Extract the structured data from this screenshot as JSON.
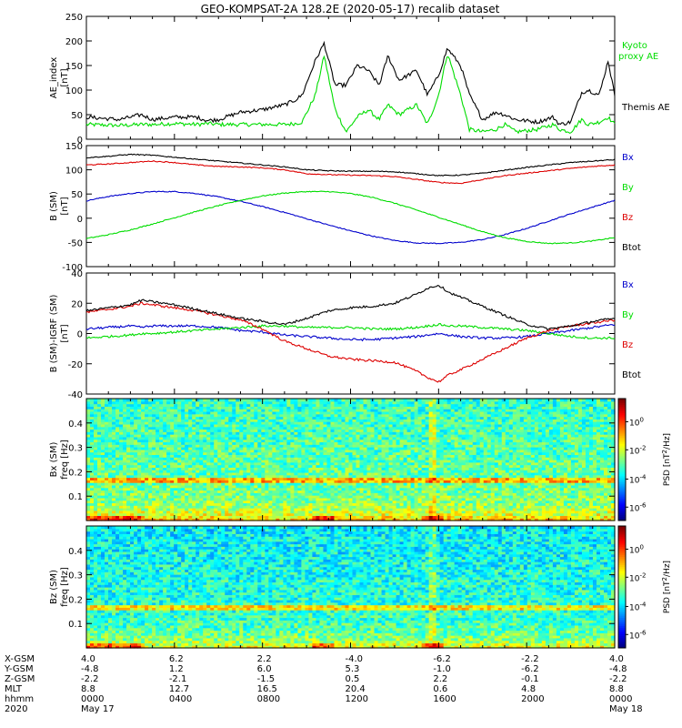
{
  "title": "GEO-KOMPSAT-2A 128.2E (2020-05-17) recalib dataset",
  "colors": {
    "black": "#000000",
    "green": "#00dd00",
    "blue": "#0000cc",
    "red": "#dd0000"
  },
  "chart_data": [
    {
      "type": "line",
      "ylabel": "AE_index [nT]",
      "ylim": [
        0,
        250
      ],
      "yticks": [
        "0",
        "50",
        "100",
        "150",
        "200",
        "250"
      ],
      "x": [
        0,
        1.5,
        2.5,
        3,
        4,
        5,
        5.5,
        6,
        7,
        8,
        9,
        9.5,
        9.8,
        10.4,
        10.8,
        11.3,
        11.8,
        12.3,
        12.8,
        13.3,
        13.7,
        14.2,
        15,
        15.5,
        16,
        16.4,
        17,
        17.4,
        18,
        18.6,
        19,
        19.5,
        20.5,
        21.2,
        21.5,
        22,
        22.5,
        22.8,
        23.3,
        23.7,
        24
      ],
      "series": [
        {
          "name": "Kyoto proxy AE",
          "color": "#00dd00",
          "values": [
            30,
            28,
            30,
            30,
            32,
            30,
            32,
            30,
            30,
            30,
            30,
            32,
            35,
            90,
            170,
            60,
            15,
            45,
            60,
            40,
            70,
            50,
            70,
            30,
            90,
            175,
            90,
            20,
            15,
            20,
            30,
            15,
            20,
            30,
            20,
            15,
            40,
            30,
            35,
            45,
            30
          ]
        },
        {
          "name": "Themis AE",
          "color": "#000000",
          "values": [
            45,
            40,
            50,
            40,
            45,
            45,
            38,
            40,
            55,
            60,
            70,
            80,
            90,
            160,
            195,
            110,
            110,
            150,
            140,
            110,
            170,
            120,
            140,
            90,
            130,
            185,
            150,
            90,
            40,
            55,
            50,
            40,
            35,
            45,
            30,
            35,
            95,
            100,
            90,
            160,
            90
          ]
        }
      ]
    },
    {
      "type": "line",
      "ylabel": "B (SM) [nT]",
      "ylim": [
        -100,
        150
      ],
      "yticks": [
        "-100",
        "-50",
        "0",
        "50",
        "100",
        "150"
      ],
      "x": [
        0,
        1,
        2,
        3,
        4,
        5,
        6,
        7,
        8,
        9,
        10,
        11,
        12,
        13,
        14,
        15,
        16,
        17,
        18,
        19,
        20,
        21,
        22,
        23,
        24
      ],
      "series": [
        {
          "name": "Bx",
          "color": "#0000cc",
          "values": [
            36,
            45,
            51,
            55,
            55,
            51,
            44,
            35,
            24,
            12,
            -1,
            -14,
            -26,
            -37,
            -46,
            -51,
            -52,
            -50,
            -44,
            -34,
            -21,
            -6,
            9,
            23,
            37
          ]
        },
        {
          "name": "By",
          "color": "#00dd00",
          "values": [
            -42,
            -34,
            -24,
            -12,
            1,
            14,
            26,
            37,
            46,
            52,
            55,
            55,
            51,
            43,
            31,
            17,
            2,
            -13,
            -28,
            -40,
            -48,
            -52,
            -51,
            -47,
            -40
          ]
        },
        {
          "name": "Bz",
          "color": "#dd0000",
          "values": [
            110,
            112,
            115,
            118,
            115,
            110,
            107,
            106,
            104,
            100,
            92,
            90,
            89,
            88,
            86,
            80,
            74,
            72,
            80,
            88,
            93,
            98,
            103,
            107,
            110
          ]
        },
        {
          "name": "Btot",
          "color": "#000000",
          "values": [
            125,
            128,
            132,
            130,
            126,
            122,
            118,
            114,
            110,
            106,
            100,
            98,
            97,
            97,
            96,
            92,
            88,
            89,
            93,
            99,
            105,
            110,
            115,
            118,
            121
          ]
        }
      ]
    },
    {
      "type": "line",
      "ylabel": "B (SM)-IGRF (SM) [nT]",
      "ylim": [
        -40,
        40
      ],
      "yticks": [
        "-40",
        "-20",
        "0",
        "20",
        "40"
      ],
      "x": [
        0,
        1,
        2,
        2.5,
        3,
        4,
        5,
        6,
        7,
        8,
        9,
        10,
        11,
        12,
        13,
        14,
        15,
        15.5,
        16,
        16.5,
        17,
        18,
        19,
        20,
        21,
        22,
        23,
        24
      ],
      "series": [
        {
          "name": "Bx",
          "color": "#0000cc",
          "values": [
            3,
            4,
            5,
            4,
            5,
            5,
            5,
            4,
            2,
            1,
            -1,
            -2,
            -3,
            -4,
            -4,
            -3,
            -2,
            -1,
            0,
            -1,
            -2,
            -3,
            -3,
            -2,
            0,
            2,
            4,
            6
          ]
        },
        {
          "name": "By",
          "color": "#00dd00",
          "values": [
            -3,
            -2,
            -1,
            0,
            0,
            1,
            2,
            3,
            4,
            5,
            5,
            4,
            4,
            4,
            3,
            3,
            4,
            5,
            6,
            5,
            5,
            4,
            3,
            2,
            0,
            -2,
            -3,
            -3
          ]
        },
        {
          "name": "Bz",
          "color": "#dd0000",
          "values": [
            14,
            16,
            18,
            20,
            19,
            17,
            15,
            12,
            9,
            3,
            -5,
            -10,
            -15,
            -17,
            -18,
            -19,
            -25,
            -29,
            -32,
            -27,
            -24,
            -17,
            -10,
            -3,
            2,
            5,
            7,
            9
          ]
        },
        {
          "name": "Btot",
          "color": "#000000",
          "values": [
            15,
            17,
            19,
            22,
            21,
            19,
            16,
            13,
            10,
            8,
            6,
            10,
            15,
            17,
            18,
            20,
            26,
            30,
            32,
            27,
            24,
            18,
            12,
            6,
            3,
            5,
            8,
            10
          ]
        }
      ]
    },
    {
      "type": "heatmap",
      "ylabel": "Bx (SM) freq [Hz]",
      "ylim": [
        0,
        0.5
      ],
      "yticks": [
        "0.1",
        "0.2",
        "0.3",
        "0.4"
      ],
      "cbar_label": "PSD [nT2/Hz]",
      "cbar_ticks": [
        "10^0",
        "10^-2",
        "10^-4",
        "10^-6"
      ]
    },
    {
      "type": "heatmap",
      "ylabel": "Bz (SM) freq [Hz]",
      "ylim": [
        0,
        0.5
      ],
      "yticks": [
        "0.1",
        "0.2",
        "0.3",
        "0.4"
      ],
      "cbar_label": "PSD [nT2/Hz]",
      "cbar_ticks": [
        "10^0",
        "10^-2",
        "10^-4",
        "10^-6"
      ]
    }
  ],
  "legends": {
    "ae": [
      {
        "text": "Kyoto",
        "color": "#00dd00"
      },
      {
        "text": "proxy AE",
        "color": "#00dd00"
      },
      {
        "text": "Themis AE",
        "color": "#000000"
      }
    ],
    "b": [
      {
        "text": "Bx",
        "color": "#0000cc"
      },
      {
        "text": "By",
        "color": "#00dd00"
      },
      {
        "text": "Bz",
        "color": "#dd0000"
      },
      {
        "text": "Btot",
        "color": "#000000"
      }
    ]
  },
  "xaxis": {
    "row_labels": [
      "X-GSM",
      "Y-GSM",
      "Z-GSM",
      "MLT",
      "hhmm",
      "2020"
    ],
    "ticks": [
      {
        "xgsm": "4.0",
        "ygsm": "-4.8",
        "zgsm": "-2.2",
        "mlt": "8.8",
        "hhmm": "0000",
        "date": "May 17"
      },
      {
        "xgsm": "6.2",
        "ygsm": "1.2",
        "zgsm": "-2.1",
        "mlt": "12.7",
        "hhmm": "0400",
        "date": ""
      },
      {
        "xgsm": "2.2",
        "ygsm": "6.0",
        "zgsm": "-1.5",
        "mlt": "16.5",
        "hhmm": "0800",
        "date": ""
      },
      {
        "xgsm": "-4.0",
        "ygsm": "5.3",
        "zgsm": "0.5",
        "mlt": "20.4",
        "hhmm": "1200",
        "date": ""
      },
      {
        "xgsm": "-6.2",
        "ygsm": "-1.0",
        "zgsm": "2.2",
        "mlt": "0.6",
        "hhmm": "1600",
        "date": ""
      },
      {
        "xgsm": "-2.2",
        "ygsm": "-6.2",
        "zgsm": "-0.1",
        "mlt": "4.8",
        "hhmm": "2000",
        "date": ""
      },
      {
        "xgsm": "4.0",
        "ygsm": "-4.8",
        "zgsm": "-2.2",
        "mlt": "8.8",
        "hhmm": "0000",
        "date": "May 18"
      }
    ]
  }
}
